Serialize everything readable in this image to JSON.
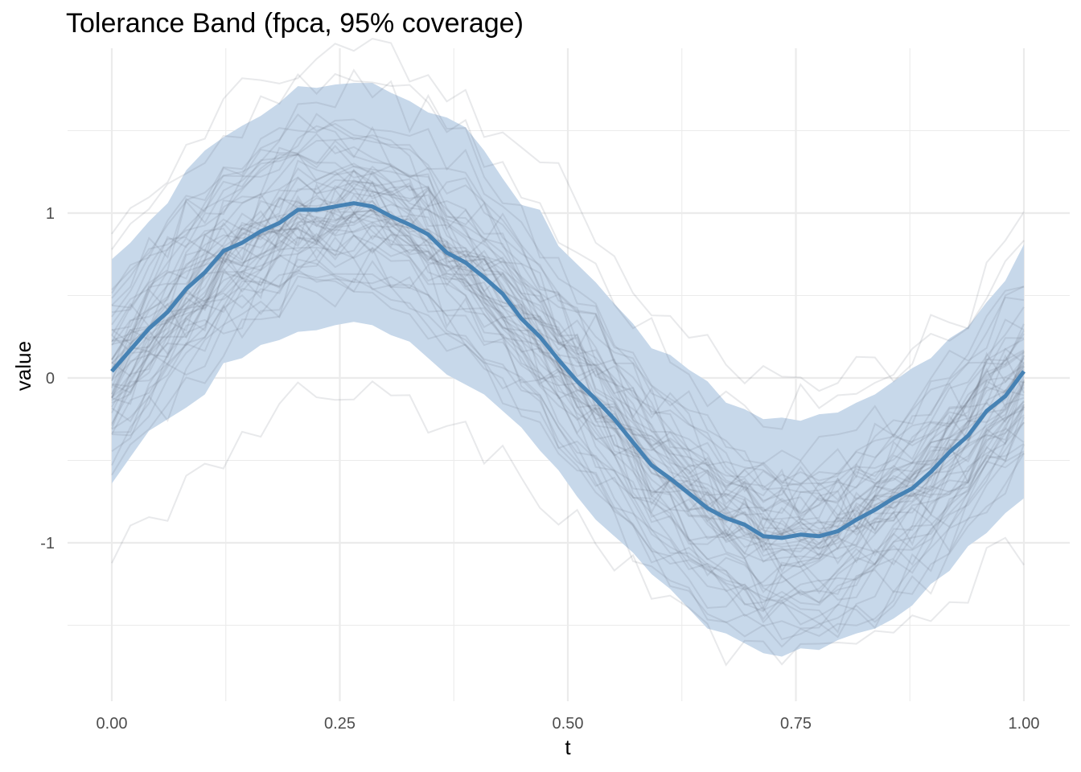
{
  "chart_data": {
    "type": "line",
    "title": "Tolerance Band (fpca, 95% coverage)",
    "xlabel": "t",
    "ylabel": "value",
    "xlim": [
      0,
      1
    ],
    "ylim": [
      -1.95,
      2.0
    ],
    "x_ticks": [
      0,
      0.25,
      0.5,
      0.75,
      1
    ],
    "x_tick_labels": [
      "0.00",
      "0.25",
      "0.50",
      "0.75",
      "1.00"
    ],
    "y_ticks": [
      -1,
      0,
      1
    ],
    "y_tick_labels": [
      "-1",
      "0",
      "1"
    ],
    "grid": true,
    "legend": "none",
    "x": [
      0.0,
      0.0204,
      0.0408,
      0.0612,
      0.0816,
      0.102,
      0.1224,
      0.1429,
      0.1633,
      0.1837,
      0.2041,
      0.2245,
      0.2449,
      0.2653,
      0.2857,
      0.3061,
      0.3265,
      0.3469,
      0.3673,
      0.3878,
      0.4082,
      0.4286,
      0.449,
      0.4694,
      0.4898,
      0.5102,
      0.5306,
      0.551,
      0.5714,
      0.5918,
      0.6122,
      0.6327,
      0.6531,
      0.6735,
      0.6939,
      0.7143,
      0.7347,
      0.7551,
      0.7755,
      0.7959,
      0.8163,
      0.8367,
      0.8571,
      0.8776,
      0.898,
      0.9184,
      0.9388,
      0.9592,
      0.9796,
      1.0
    ],
    "series": [
      {
        "kind": "center",
        "color": "#4682b4",
        "values": [
          0.04,
          0.17,
          0.3,
          0.4,
          0.54,
          0.64,
          0.77,
          0.82,
          0.89,
          0.94,
          1.02,
          1.02,
          1.04,
          1.06,
          1.04,
          0.98,
          0.93,
          0.87,
          0.76,
          0.7,
          0.61,
          0.51,
          0.36,
          0.25,
          0.11,
          -0.02,
          -0.13,
          -0.25,
          -0.39,
          -0.53,
          -0.61,
          -0.7,
          -0.79,
          -0.85,
          -0.89,
          -0.96,
          -0.97,
          -0.95,
          -0.96,
          -0.93,
          -0.86,
          -0.8,
          -0.73,
          -0.67,
          -0.57,
          -0.45,
          -0.35,
          -0.2,
          -0.11,
          0.04
        ]
      },
      {
        "kind": "band_upper",
        "color": "#c7d8ea",
        "values": [
          0.72,
          0.82,
          0.95,
          1.06,
          1.26,
          1.38,
          1.46,
          1.53,
          1.59,
          1.67,
          1.77,
          1.76,
          1.78,
          1.79,
          1.79,
          1.73,
          1.68,
          1.61,
          1.58,
          1.52,
          1.38,
          1.21,
          1.05,
          1.02,
          0.8,
          0.69,
          0.58,
          0.45,
          0.33,
          0.18,
          0.14,
          0.05,
          -0.02,
          -0.15,
          -0.19,
          -0.25,
          -0.24,
          -0.26,
          -0.22,
          -0.21,
          -0.15,
          -0.1,
          -0.02,
          0.06,
          0.12,
          0.24,
          0.31,
          0.46,
          0.59,
          0.81
        ]
      },
      {
        "kind": "band_lower",
        "color": "#c7d8ea",
        "values": [
          -0.64,
          -0.48,
          -0.32,
          -0.25,
          -0.18,
          -0.1,
          0.09,
          0.12,
          0.2,
          0.23,
          0.28,
          0.29,
          0.32,
          0.34,
          0.32,
          0.26,
          0.22,
          0.12,
          0.02,
          -0.04,
          -0.1,
          -0.2,
          -0.3,
          -0.44,
          -0.56,
          -0.72,
          -0.86,
          -0.96,
          -1.06,
          -1.19,
          -1.28,
          -1.4,
          -1.52,
          -1.55,
          -1.61,
          -1.67,
          -1.69,
          -1.64,
          -1.65,
          -1.59,
          -1.55,
          -1.52,
          -1.46,
          -1.38,
          -1.25,
          -1.17,
          -1.02,
          -0.94,
          -0.82,
          -0.73
        ]
      }
    ]
  },
  "style": {
    "band_color": "#c7d8ea",
    "center_color": "#4682b4",
    "sample_curve_color": "#5c6670",
    "sample_curve_count": 56,
    "grid_color": "#ebebeb",
    "background": "#ffffff"
  }
}
